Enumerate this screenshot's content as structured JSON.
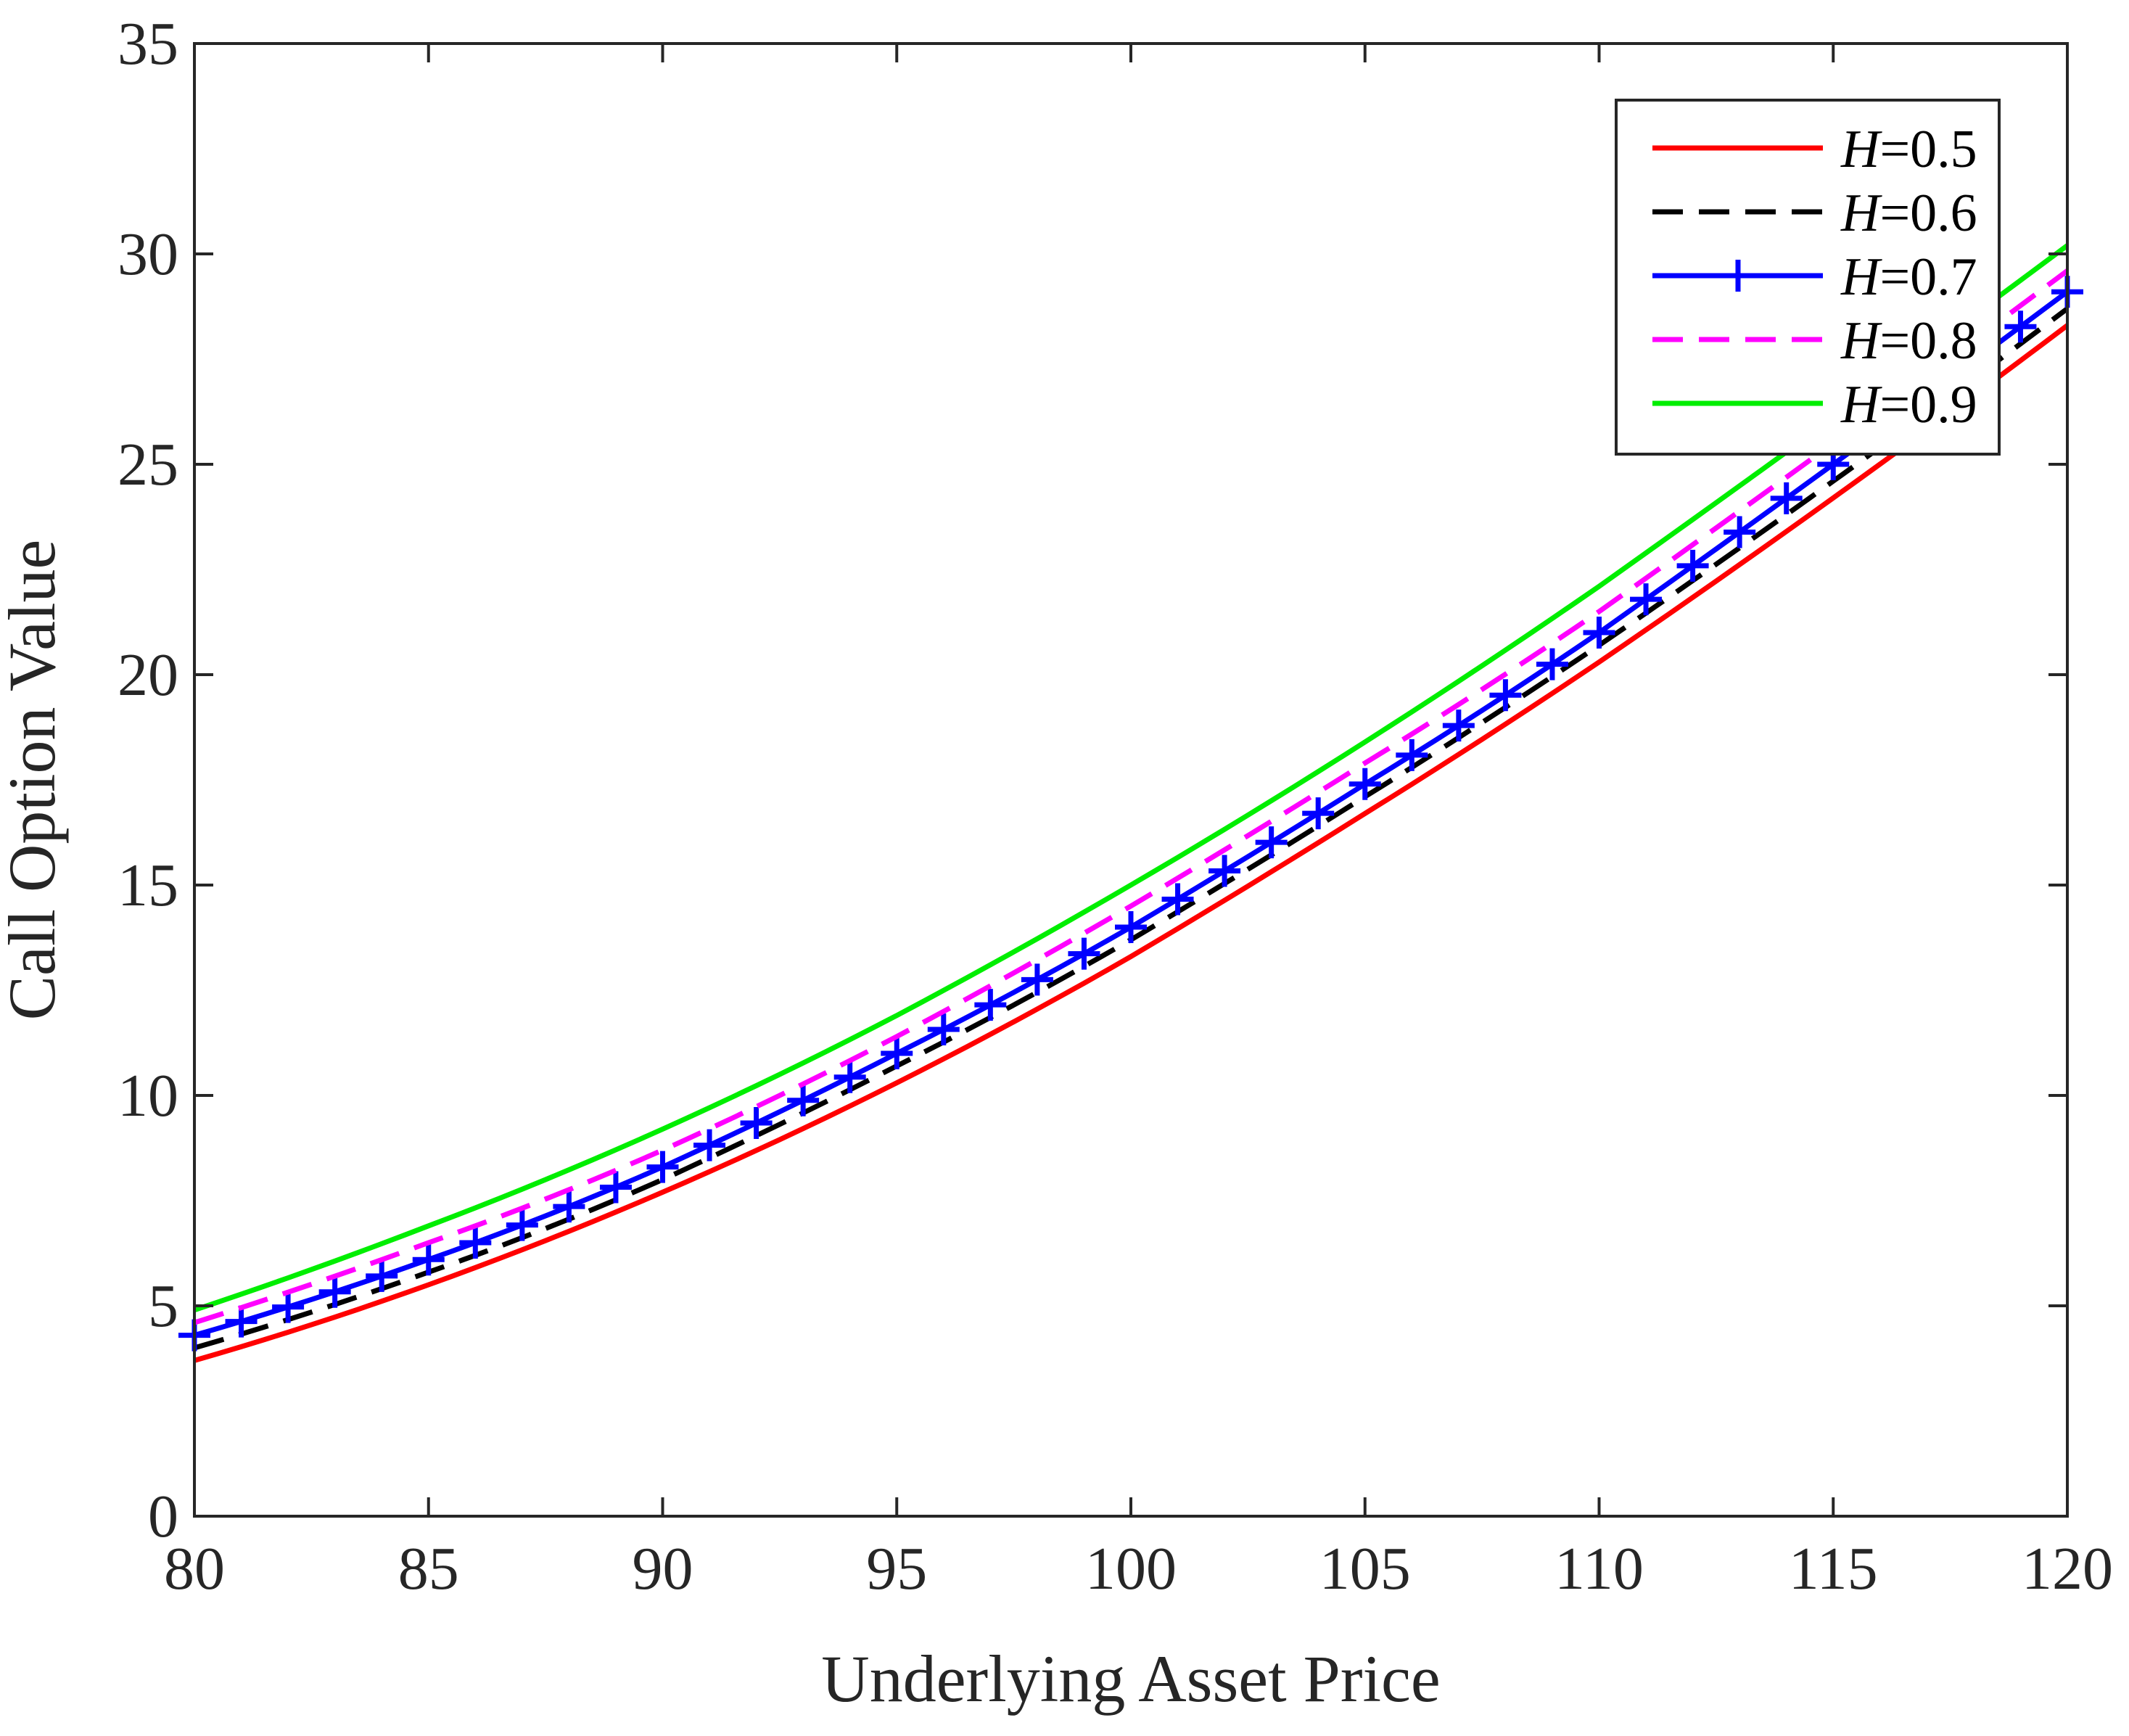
{
  "chart_data": {
    "type": "line",
    "title": "",
    "xlabel": "Underlying Asset Price",
    "ylabel": "Call Option Value",
    "xlim": [
      80,
      120
    ],
    "ylim": [
      0,
      35
    ],
    "xticks": [
      "80",
      "85",
      "90",
      "95",
      "100",
      "105",
      "110",
      "115",
      "120"
    ],
    "yticks": [
      "0",
      "5",
      "10",
      "15",
      "20",
      "25",
      "30",
      "35"
    ],
    "x": [
      80,
      85,
      90,
      95,
      100,
      105,
      110,
      115,
      120
    ],
    "legend_position": "top-right",
    "series": [
      {
        "name": "H",
        "label_value": "=0.5",
        "color": "#ff0000",
        "style": "solid",
        "marker": "none",
        "values": [
          3.7,
          5.5,
          7.7,
          10.3,
          13.3,
          16.7,
          20.3,
          24.2,
          28.3
        ]
      },
      {
        "name": "H",
        "label_value": "=0.6",
        "color": "#000000",
        "style": "dashed",
        "marker": "none",
        "values": [
          4.0,
          5.8,
          8.0,
          10.7,
          13.7,
          17.1,
          20.7,
          24.6,
          28.7
        ]
      },
      {
        "name": "H",
        "label_value": "=0.7",
        "color": "#0000ff",
        "style": "solid",
        "marker": "plus",
        "values": [
          4.3,
          6.1,
          8.3,
          11.0,
          14.0,
          17.4,
          21.0,
          25.0,
          29.1
        ]
      },
      {
        "name": "H",
        "label_value": "=0.8",
        "color": "#ff00ff",
        "style": "dashed",
        "marker": "none",
        "values": [
          4.6,
          6.5,
          8.7,
          11.4,
          14.5,
          17.9,
          21.5,
          25.5,
          29.6
        ]
      },
      {
        "name": "H",
        "label_value": "=0.9",
        "color": "#00ee00",
        "style": "solid",
        "marker": "none",
        "values": [
          4.9,
          6.9,
          9.2,
          11.9,
          15.0,
          18.4,
          22.1,
          26.1,
          30.2
        ]
      }
    ]
  }
}
